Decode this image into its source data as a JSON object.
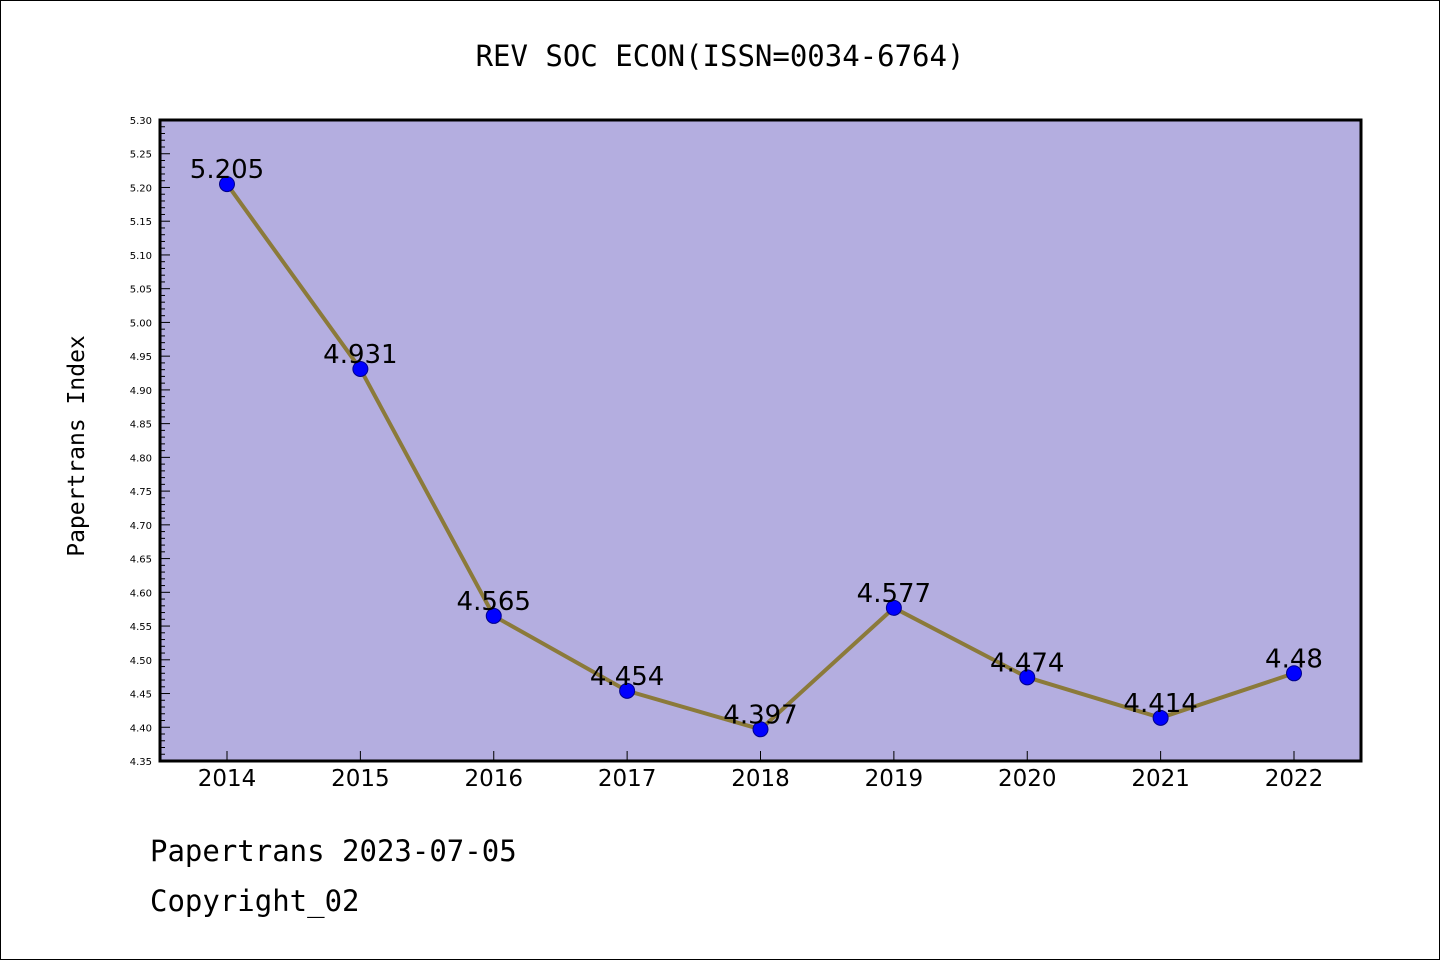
{
  "chart_data": {
    "type": "line",
    "title": "REV SOC ECON(ISSN=0034-6764)",
    "ylabel": "Papertrans Index",
    "xlabel": "",
    "categories": [
      "2014",
      "2015",
      "2016",
      "2017",
      "2018",
      "2019",
      "2020",
      "2021",
      "2022"
    ],
    "values": [
      5.205,
      4.931,
      4.565,
      4.454,
      4.397,
      4.577,
      4.474,
      4.414,
      4.48
    ],
    "data_labels": [
      "5.205",
      "4.931",
      "4.565",
      "4.454",
      "4.397",
      "4.577",
      "4.474",
      "4.414",
      "4.48"
    ],
    "ylim": [
      4.35,
      5.3
    ],
    "y_ticks": [
      "4.35",
      "4.40",
      "4.45",
      "4.50",
      "4.55",
      "4.60",
      "4.65",
      "4.70",
      "4.75",
      "4.80",
      "4.85",
      "4.90",
      "4.95",
      "5.00",
      "5.05",
      "5.10",
      "5.15",
      "5.20",
      "5.25",
      "5.30"
    ],
    "grid": false,
    "colors": {
      "plot_background": "#b4aee0",
      "line": "#8b7a3a",
      "marker_fill": "#0000ff",
      "marker_stroke": "#00008b"
    }
  },
  "footer": {
    "line1": "Papertrans 2023-07-05",
    "line2": "Copyright_02"
  }
}
